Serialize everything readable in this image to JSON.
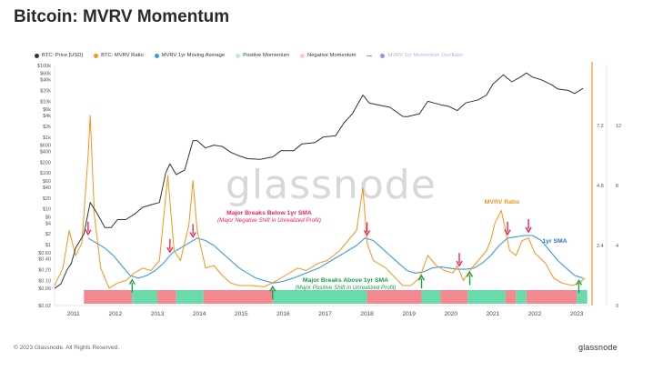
{
  "header": {
    "title": "Bitcoin: MVRV Momentum"
  },
  "legend": [
    {
      "label": "BTC: Price [USD]",
      "color": "#333333",
      "marker": "dot"
    },
    {
      "label": "BTC: MVRV Ratio",
      "color": "#f7931a",
      "marker": "dot"
    },
    {
      "label": "MVRV 1yr Moving Average",
      "color": "#3b9ae1",
      "marker": "dot"
    },
    {
      "label": "Positive Momentum",
      "color": "#b9ecd3",
      "marker": "dot"
    },
    {
      "label": "Negative Momentum",
      "color": "#f7c9cf",
      "marker": "dot"
    },
    {
      "label": "MVRV 1yr Momentum Oscillator",
      "color": "#a28ce8",
      "marker": "dot-dash"
    }
  ],
  "watermark": "glassnode",
  "footer": {
    "copyright": "© 2023 Glassnode. All Rights Reserved.",
    "brand": "glassnode"
  },
  "colors": {
    "price": "#333333",
    "mvrv": "#f7931a",
    "sma": "#3b9ae1",
    "positive": "#4fd49b",
    "negative": "#f2737e",
    "oscillator_axis": "#f7931a"
  },
  "annotations": {
    "breaks_below": {
      "title": "Major Breaks Below 1yr SMA",
      "subtitle": "(Major Negative Shift in Unrealized Profit)",
      "color": "#e8265e"
    },
    "breaks_above": {
      "title": "Major Breaks Above 1yr SMA",
      "subtitle": "(Major Positive Shift in Unrealized Profit)",
      "color": "#1a9e45"
    },
    "mvrv_label": {
      "text": "MVRV Ratio",
      "color": "#f7931a"
    },
    "sma_label": {
      "text": "1yr SMA",
      "color": "#2a6fd6"
    }
  },
  "chart_data": {
    "type": "line",
    "title": "Bitcoin: MVRV Momentum",
    "x_ticks": [
      "2011",
      "2012",
      "2013",
      "2014",
      "2015",
      "2016",
      "2017",
      "2018",
      "2019",
      "2020",
      "2021",
      "2022",
      "2023"
    ],
    "xlim": [
      2010.6,
      2023.35
    ],
    "left_axis": {
      "scale": "log",
      "ticks": [
        "$0.02",
        "$0.06",
        "$0.10",
        "$0.20",
        "$0.40",
        "$0.60",
        "$1",
        "$2",
        "$4",
        "$6",
        "$10",
        "$20",
        "$40",
        "$60",
        "$100",
        "$200",
        "$400",
        "$600",
        "$1k",
        "$2k",
        "$4k",
        "$6k",
        "$10k",
        "$20k",
        "$40k",
        "$60k",
        "$100k"
      ]
    },
    "right_axis_mvrv": {
      "ticks": [
        "0",
        "2.4",
        "4.8",
        "7.2"
      ],
      "ylim": [
        0,
        9.6
      ]
    },
    "right_axis_osc": {
      "ticks": [
        "0",
        "4",
        "8",
        "12"
      ],
      "ylim": [
        0,
        16
      ]
    },
    "series": [
      {
        "name": "BTC: Price [USD]",
        "axis": "left",
        "x": [
          2010.6,
          2010.75,
          2010.9,
          2011.0,
          2011.1,
          2011.3,
          2011.45,
          2011.6,
          2011.8,
          2011.95,
          2012.1,
          2012.3,
          2012.5,
          2012.7,
          2012.9,
          2013.1,
          2013.25,
          2013.35,
          2013.5,
          2013.7,
          2013.9,
          2014.0,
          2014.2,
          2014.4,
          2014.6,
          2014.8,
          2015.0,
          2015.2,
          2015.5,
          2015.8,
          2016.0,
          2016.3,
          2016.5,
          2016.8,
          2017.0,
          2017.3,
          2017.5,
          2017.7,
          2017.95,
          2018.1,
          2018.3,
          2018.6,
          2018.9,
          2019.0,
          2019.3,
          2019.5,
          2019.8,
          2020.0,
          2020.2,
          2020.4,
          2020.7,
          2020.9,
          2021.05,
          2021.3,
          2021.5,
          2021.7,
          2021.85,
          2022.0,
          2022.2,
          2022.45,
          2022.6,
          2022.85,
          2023.0,
          2023.2
        ],
        "y": [
          0.06,
          0.08,
          0.2,
          0.3,
          0.8,
          2,
          15,
          8,
          3,
          3,
          5,
          5,
          7,
          11,
          13,
          15,
          100,
          180,
          90,
          120,
          800,
          800,
          500,
          600,
          550,
          380,
          300,
          250,
          240,
          280,
          420,
          420,
          650,
          700,
          1000,
          1100,
          2500,
          4500,
          15000,
          9000,
          8000,
          6800,
          3800,
          3700,
          4500,
          10000,
          8000,
          7200,
          5500,
          9000,
          11000,
          15000,
          30000,
          55000,
          35000,
          47000,
          62000,
          47000,
          40000,
          29000,
          22000,
          20000,
          16500,
          23000
        ]
      },
      {
        "name": "BTC: MVRV Ratio",
        "axis": "right_mvrv",
        "x": [
          2010.6,
          2010.8,
          2010.95,
          2011.1,
          2011.25,
          2011.4,
          2011.45,
          2011.55,
          2011.7,
          2011.9,
          2012.1,
          2012.3,
          2012.5,
          2012.7,
          2012.9,
          2013.1,
          2013.2,
          2013.3,
          2013.45,
          2013.6,
          2013.8,
          2013.9,
          2014.0,
          2014.2,
          2014.4,
          2014.6,
          2014.8,
          2015.0,
          2015.3,
          2015.6,
          2015.9,
          2016.1,
          2016.4,
          2016.6,
          2016.9,
          2017.1,
          2017.4,
          2017.6,
          2017.8,
          2017.95,
          2018.05,
          2018.2,
          2018.5,
          2018.9,
          2019.1,
          2019.3,
          2019.5,
          2019.7,
          2019.9,
          2020.1,
          2020.2,
          2020.35,
          2020.5,
          2020.7,
          2020.9,
          2021.0,
          2021.1,
          2021.25,
          2021.45,
          2021.6,
          2021.75,
          2021.9,
          2022.05,
          2022.3,
          2022.5,
          2022.7,
          2022.95,
          2023.1,
          2023.25
        ],
        "y": [
          0.8,
          1.5,
          3,
          2,
          2.5,
          6,
          7.6,
          3.6,
          1.5,
          0.7,
          0.9,
          1.0,
          1.3,
          1.5,
          1.4,
          1.8,
          3.5,
          5.2,
          2.2,
          1.8,
          3.2,
          5.0,
          3.0,
          1.5,
          1.6,
          1.2,
          0.9,
          0.8,
          0.8,
          0.75,
          1.0,
          1.2,
          1.5,
          1.4,
          1.7,
          1.8,
          2.2,
          2.6,
          3.0,
          4.7,
          2.5,
          1.8,
          1.5,
          0.8,
          0.8,
          1.1,
          2.0,
          1.6,
          1.4,
          1.3,
          1.6,
          1.0,
          1.4,
          1.8,
          2.2,
          2.6,
          3.3,
          3.8,
          2.2,
          2.0,
          2.6,
          2.7,
          2.1,
          1.7,
          1.1,
          0.9,
          0.8,
          0.9,
          1.1
        ]
      },
      {
        "name": "MVRV 1yr Moving Average",
        "axis": "right_mvrv",
        "x": [
          2011.4,
          2011.6,
          2011.8,
          2012.0,
          2012.2,
          2012.4,
          2012.6,
          2012.8,
          2013.0,
          2013.2,
          2013.4,
          2013.6,
          2013.8,
          2014.0,
          2014.2,
          2014.4,
          2014.6,
          2014.8,
          2015.0,
          2015.2,
          2015.4,
          2015.6,
          2015.8,
          2016.0,
          2016.3,
          2016.6,
          2016.9,
          2017.2,
          2017.5,
          2017.8,
          2018.0,
          2018.2,
          2018.4,
          2018.6,
          2018.8,
          2019.0,
          2019.2,
          2019.4,
          2019.6,
          2019.8,
          2020.0,
          2020.2,
          2020.4,
          2020.6,
          2020.8,
          2021.0,
          2021.2,
          2021.4,
          2021.6,
          2021.8,
          2022.0,
          2022.2,
          2022.4,
          2022.6,
          2022.8,
          2023.0,
          2023.2
        ],
        "y": [
          2.7,
          2.5,
          2.3,
          2.0,
          1.6,
          1.2,
          1.1,
          1.2,
          1.4,
          1.7,
          2.1,
          2.3,
          2.5,
          2.7,
          2.6,
          2.4,
          2.1,
          1.8,
          1.5,
          1.3,
          1.1,
          1.0,
          0.9,
          0.95,
          1.1,
          1.3,
          1.5,
          1.8,
          2.1,
          2.4,
          2.7,
          2.6,
          2.3,
          2.0,
          1.7,
          1.4,
          1.3,
          1.35,
          1.5,
          1.55,
          1.5,
          1.45,
          1.45,
          1.5,
          1.7,
          2.0,
          2.4,
          2.7,
          2.75,
          2.8,
          2.8,
          2.6,
          2.2,
          1.8,
          1.5,
          1.2,
          1.1
        ]
      }
    ],
    "momentum_bands": [
      {
        "from": 2011.3,
        "to": 2012.45,
        "state": "negative"
      },
      {
        "from": 2012.45,
        "to": 2013.05,
        "state": "positive"
      },
      {
        "from": 2013.05,
        "to": 2013.5,
        "state": "negative"
      },
      {
        "from": 2013.5,
        "to": 2014.15,
        "state": "positive"
      },
      {
        "from": 2014.15,
        "to": 2015.8,
        "state": "negative"
      },
      {
        "from": 2015.8,
        "to": 2018.05,
        "state": "positive"
      },
      {
        "from": 2018.05,
        "to": 2019.35,
        "state": "negative"
      },
      {
        "from": 2019.35,
        "to": 2019.8,
        "state": "positive"
      },
      {
        "from": 2019.8,
        "to": 2020.45,
        "state": "negative"
      },
      {
        "from": 2020.45,
        "to": 2021.35,
        "state": "positive"
      },
      {
        "from": 2021.35,
        "to": 2021.6,
        "state": "negative"
      },
      {
        "from": 2021.6,
        "to": 2021.85,
        "state": "positive"
      },
      {
        "from": 2021.85,
        "to": 2023.05,
        "state": "negative"
      },
      {
        "from": 2023.05,
        "to": 2023.3,
        "state": "positive"
      }
    ],
    "break_below_markers": [
      2011.4,
      2013.35,
      2013.9,
      2018.05,
      2020.25,
      2021.4,
      2021.9
    ],
    "break_above_markers": [
      2012.45,
      2015.8,
      2019.35,
      2020.5,
      2023.1
    ]
  }
}
